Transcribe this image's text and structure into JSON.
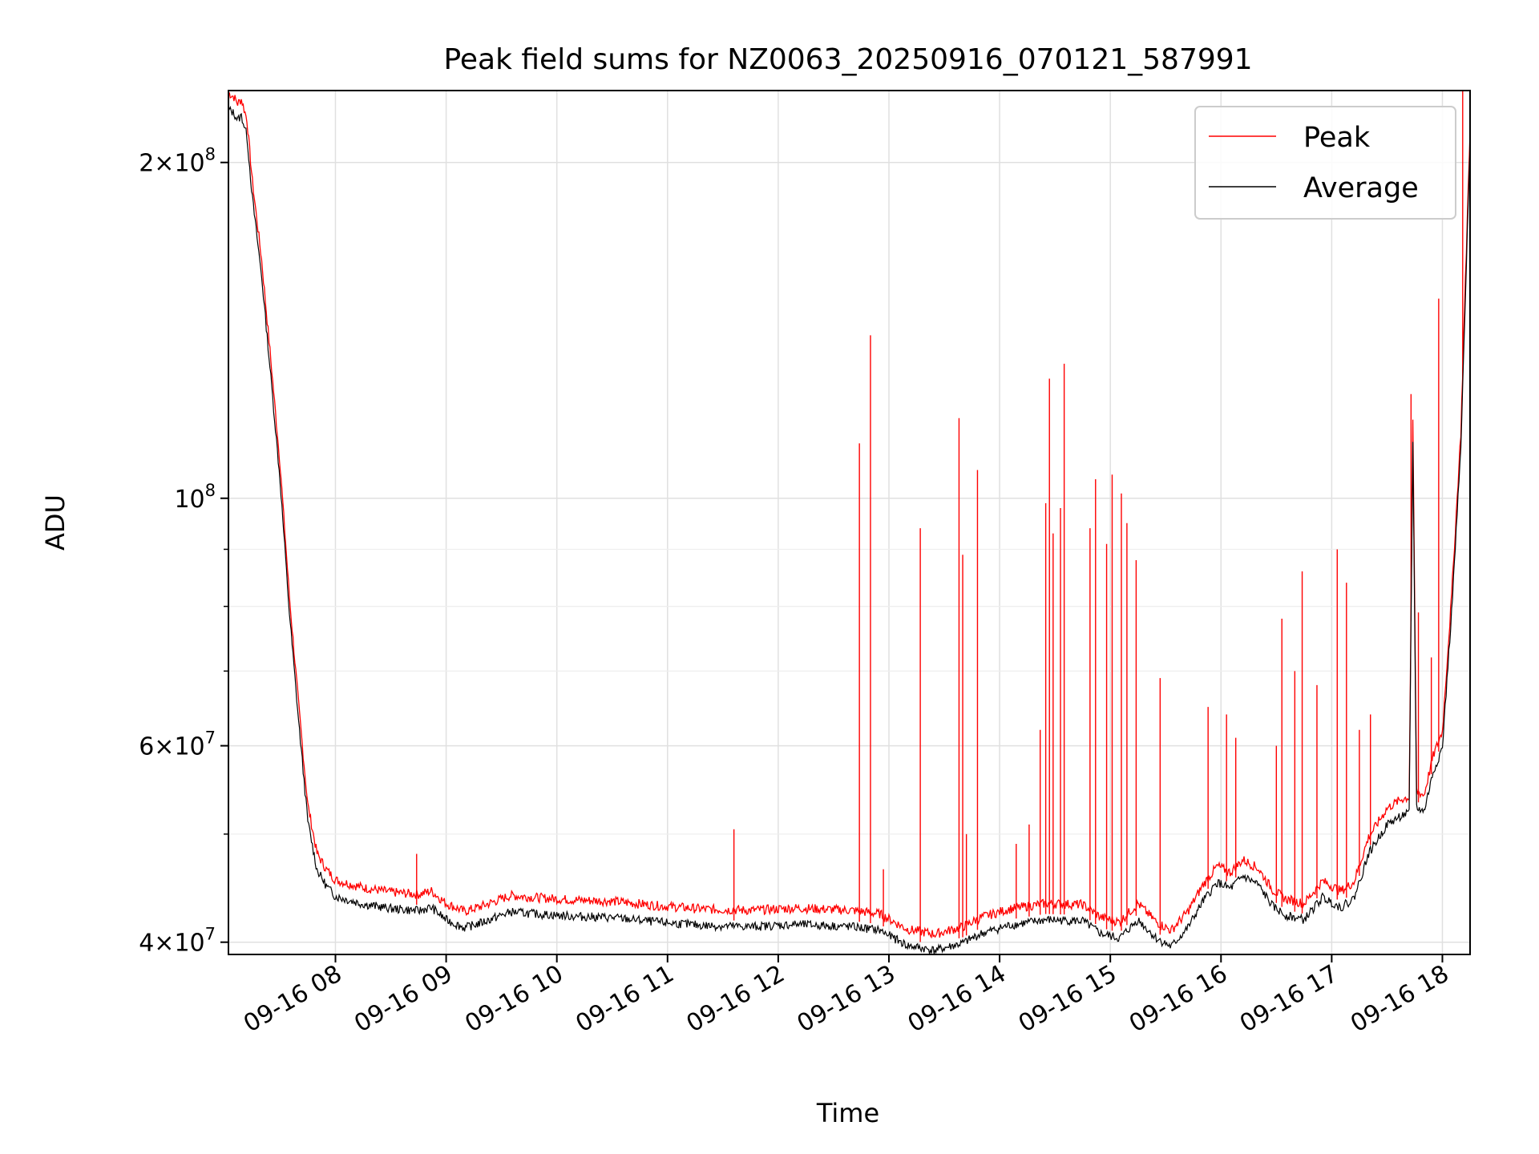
{
  "chart_data": {
    "type": "line",
    "title": "Peak field sums for NZ0063_20250916_070121_587991",
    "xlabel": "Time",
    "ylabel": "ADU",
    "y_scale": "log",
    "ylim": [
      39000000,
      232000000
    ],
    "xlim": [
      "2025-09-16 07:02",
      "2025-09-16 18:15"
    ],
    "grid": true,
    "legend_position": "top-right",
    "x_ticks": [
      {
        "t": "2025-09-16 08:00",
        "label": "09-16 08"
      },
      {
        "t": "2025-09-16 09:00",
        "label": "09-16 09"
      },
      {
        "t": "2025-09-16 10:00",
        "label": "09-16 10"
      },
      {
        "t": "2025-09-16 11:00",
        "label": "09-16 11"
      },
      {
        "t": "2025-09-16 12:00",
        "label": "09-16 12"
      },
      {
        "t": "2025-09-16 13:00",
        "label": "09-16 13"
      },
      {
        "t": "2025-09-16 14:00",
        "label": "09-16 14"
      },
      {
        "t": "2025-09-16 15:00",
        "label": "09-16 15"
      },
      {
        "t": "2025-09-16 16:00",
        "label": "09-16 16"
      },
      {
        "t": "2025-09-16 17:00",
        "label": "09-16 17"
      },
      {
        "t": "2025-09-16 18:00",
        "label": "09-16 18"
      }
    ],
    "y_ticks": [
      {
        "value": 40000000,
        "base": "4",
        "exp": "7"
      },
      {
        "value": 60000000,
        "base": "6",
        "exp": "7"
      },
      {
        "value": 100000000,
        "base": "",
        "exp": "8"
      },
      {
        "value": 200000000,
        "base": "2",
        "exp": "8"
      }
    ],
    "y_minor_ticks": [
      50000000,
      70000000,
      80000000,
      90000000
    ],
    "series": [
      {
        "name": "Average",
        "color": "#000000",
        "points": [
          [
            "2025-09-16 07:02",
            226000000
          ],
          [
            "2025-09-16 07:05",
            224000000
          ],
          [
            "2025-09-16 07:07",
            221000000
          ],
          [
            "2025-09-16 07:09",
            223000000
          ],
          [
            "2025-09-16 07:12",
            214000000
          ],
          [
            "2025-09-16 07:15",
            188000000
          ],
          [
            "2025-09-16 07:20",
            160000000
          ],
          [
            "2025-09-16 07:25",
            130000000
          ],
          [
            "2025-09-16 07:30",
            105000000
          ],
          [
            "2025-09-16 07:35",
            80000000
          ],
          [
            "2025-09-16 07:40",
            64000000
          ],
          [
            "2025-09-16 07:45",
            52000000
          ],
          [
            "2025-09-16 07:50",
            47000000
          ],
          [
            "2025-09-16 07:55",
            45500000
          ],
          [
            "2025-09-16 08:00",
            44500000
          ],
          [
            "2025-09-16 08:15",
            43800000
          ],
          [
            "2025-09-16 08:30",
            43400000
          ],
          [
            "2025-09-16 08:45",
            43200000
          ],
          [
            "2025-09-16 08:52",
            43500000
          ],
          [
            "2025-09-16 09:00",
            42400000
          ],
          [
            "2025-09-16 09:10",
            41700000
          ],
          [
            "2025-09-16 09:20",
            42200000
          ],
          [
            "2025-09-16 09:35",
            43100000
          ],
          [
            "2025-09-16 09:50",
            42900000
          ],
          [
            "2025-09-16 10:10",
            42700000
          ],
          [
            "2025-09-16 10:30",
            42600000
          ],
          [
            "2025-09-16 10:55",
            42200000
          ],
          [
            "2025-09-16 11:20",
            41900000
          ],
          [
            "2025-09-16 11:45",
            41800000
          ],
          [
            "2025-09-16 12:10",
            42000000
          ],
          [
            "2025-09-16 12:40",
            41800000
          ],
          [
            "2025-09-16 12:55",
            41500000
          ],
          [
            "2025-09-16 13:10",
            40200000
          ],
          [
            "2025-09-16 13:25",
            39800000
          ],
          [
            "2025-09-16 13:40",
            40400000
          ],
          [
            "2025-09-16 13:50",
            41200000
          ],
          [
            "2025-09-16 14:05",
            41900000
          ],
          [
            "2025-09-16 14:25",
            42400000
          ],
          [
            "2025-09-16 14:45",
            42300000
          ],
          [
            "2025-09-16 14:55",
            41200000
          ],
          [
            "2025-09-16 15:05",
            40800000
          ],
          [
            "2025-09-16 15:15",
            42400000
          ],
          [
            "2025-09-16 15:25",
            40800000
          ],
          [
            "2025-09-16 15:33",
            40100000
          ],
          [
            "2025-09-16 15:42",
            41700000
          ],
          [
            "2025-09-16 15:50",
            44000000
          ],
          [
            "2025-09-16 15:58",
            45800000
          ],
          [
            "2025-09-16 16:05",
            45200000
          ],
          [
            "2025-09-16 16:12",
            46400000
          ],
          [
            "2025-09-16 16:20",
            45600000
          ],
          [
            "2025-09-16 16:28",
            43600000
          ],
          [
            "2025-09-16 16:35",
            42800000
          ],
          [
            "2025-09-16 16:45",
            42400000
          ],
          [
            "2025-09-16 16:55",
            44400000
          ],
          [
            "2025-09-16 17:05",
            43500000
          ],
          [
            "2025-09-16 17:12",
            44300000
          ],
          [
            "2025-09-16 17:20",
            48600000
          ],
          [
            "2025-09-16 17:30",
            51600000
          ],
          [
            "2025-09-16 17:38",
            52600000
          ],
          [
            "2025-09-16 17:42",
            52800000
          ],
          [
            "2025-09-16 17:44",
            114000000
          ],
          [
            "2025-09-16 17:46",
            53500000
          ],
          [
            "2025-09-16 17:50",
            53000000
          ],
          [
            "2025-09-16 17:55",
            57500000
          ],
          [
            "2025-09-16 18:00",
            60500000
          ],
          [
            "2025-09-16 18:05",
            80000000
          ],
          [
            "2025-09-16 18:10",
            112000000
          ],
          [
            "2025-09-16 18:15",
            210000000
          ]
        ]
      },
      {
        "name": "Peak",
        "color": "#ff0000",
        "spikes": [
          [
            "2025-09-16 08:44",
            48000000
          ],
          [
            "2025-09-16 11:36",
            50500000
          ],
          [
            "2025-09-16 12:44",
            112000000
          ],
          [
            "2025-09-16 12:50",
            140000000
          ],
          [
            "2025-09-16 12:57",
            46500000
          ],
          [
            "2025-09-16 13:17",
            94000000
          ],
          [
            "2025-09-16 13:38",
            118000000
          ],
          [
            "2025-09-16 13:40",
            89000000
          ],
          [
            "2025-09-16 13:42",
            50000000
          ],
          [
            "2025-09-16 13:48",
            106000000
          ],
          [
            "2025-09-16 14:09",
            49000000
          ],
          [
            "2025-09-16 14:16",
            51000000
          ],
          [
            "2025-09-16 14:22",
            62000000
          ],
          [
            "2025-09-16 14:25",
            99000000
          ],
          [
            "2025-09-16 14:27",
            128000000
          ],
          [
            "2025-09-16 14:29",
            93000000
          ],
          [
            "2025-09-16 14:33",
            98000000
          ],
          [
            "2025-09-16 14:35",
            132000000
          ],
          [
            "2025-09-16 14:49",
            94000000
          ],
          [
            "2025-09-16 14:52",
            104000000
          ],
          [
            "2025-09-16 14:58",
            91000000
          ],
          [
            "2025-09-16 15:01",
            105000000
          ],
          [
            "2025-09-16 15:06",
            101000000
          ],
          [
            "2025-09-16 15:09",
            95000000
          ],
          [
            "2025-09-16 15:14",
            88000000
          ],
          [
            "2025-09-16 15:27",
            69000000
          ],
          [
            "2025-09-16 15:53",
            65000000
          ],
          [
            "2025-09-16 16:03",
            64000000
          ],
          [
            "2025-09-16 16:08",
            61000000
          ],
          [
            "2025-09-16 16:30",
            60000000
          ],
          [
            "2025-09-16 16:33",
            78000000
          ],
          [
            "2025-09-16 16:40",
            70000000
          ],
          [
            "2025-09-16 16:44",
            86000000
          ],
          [
            "2025-09-16 16:52",
            68000000
          ],
          [
            "2025-09-16 17:03",
            90000000
          ],
          [
            "2025-09-16 17:08",
            84000000
          ],
          [
            "2025-09-16 17:15",
            62000000
          ],
          [
            "2025-09-16 17:21",
            64000000
          ],
          [
            "2025-09-16 17:43",
            124000000
          ],
          [
            "2025-09-16 17:47",
            79000000
          ],
          [
            "2025-09-16 17:54",
            72000000
          ],
          [
            "2025-09-16 17:58",
            151000000
          ],
          [
            "2025-09-16 18:11",
            232000000
          ]
        ]
      }
    ]
  }
}
